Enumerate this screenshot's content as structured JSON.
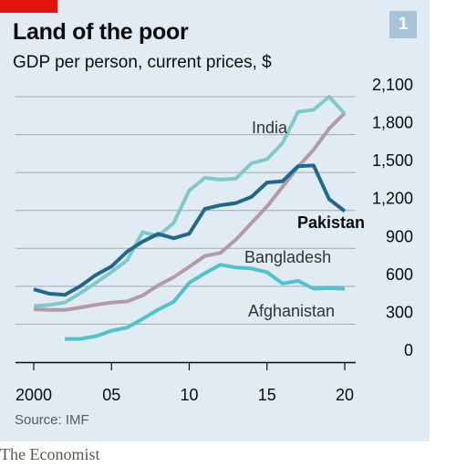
{
  "header": {
    "title": "Land of the poor",
    "subtitle": "GDP per person, current prices, $",
    "chart_number": "1"
  },
  "footer": {
    "source": "Source: IMF",
    "brand": "The Economist"
  },
  "colors": {
    "panel": "#e0ebf3",
    "red_tag": "#e3120b",
    "India": "#7fcac8",
    "Pakistan": "#1f6991",
    "Bangladesh": "#b39aa7",
    "Afghanistan": "#4fc2cf"
  },
  "chart_data": {
    "type": "line",
    "title": "Land of the poor",
    "subtitle": "GDP per person, current prices, $",
    "xlabel": "",
    "ylabel": "",
    "xlim": [
      2000,
      2020
    ],
    "ylim": [
      0,
      2100
    ],
    "yticks": [
      0,
      300,
      600,
      900,
      1200,
      1500,
      1800,
      2100
    ],
    "ytick_labels": [
      "0",
      "300",
      "600",
      "900",
      "1,200",
      "1,500",
      "1,800",
      "2,100"
    ],
    "xticks": [
      2000,
      2005,
      2010,
      2015,
      2020
    ],
    "xtick_labels": [
      "2000",
      "05",
      "10",
      "15",
      "20"
    ],
    "grid": "horizontal",
    "series": [
      {
        "name": "India",
        "x": [
          2000,
          2001,
          2002,
          2003,
          2004,
          2005,
          2006,
          2007,
          2008,
          2009,
          2010,
          2011,
          2012,
          2013,
          2014,
          2015,
          2016,
          2017,
          2018,
          2019,
          2020
        ],
        "values": [
          443,
          452,
          471,
          546,
          628,
          714,
          806,
          1028,
          998,
          1101,
          1358,
          1458,
          1444,
          1452,
          1573,
          1606,
          1733,
          1981,
          1997,
          2100,
          1965
        ]
      },
      {
        "name": "Pakistan",
        "x": [
          2000,
          2001,
          2002,
          2003,
          2004,
          2005,
          2006,
          2007,
          2008,
          2009,
          2010,
          2011,
          2012,
          2013,
          2014,
          2015,
          2016,
          2017,
          2018,
          2019,
          2020
        ],
        "values": [
          576,
          541,
          532,
          602,
          690,
          757,
          874,
          953,
          1015,
          980,
          1016,
          1212,
          1241,
          1258,
          1307,
          1421,
          1431,
          1550,
          1556,
          1289,
          1194
        ]
      },
      {
        "name": "Bangladesh",
        "x": [
          2000,
          2001,
          2002,
          2003,
          2004,
          2005,
          2006,
          2007,
          2008,
          2009,
          2010,
          2011,
          2012,
          2013,
          2014,
          2015,
          2016,
          2017,
          2018,
          2019,
          2020
        ],
        "values": [
          418,
          413,
          413,
          432,
          453,
          471,
          480,
          527,
          607,
          672,
          754,
          839,
          864,
          969,
          1100,
          1232,
          1386,
          1545,
          1681,
          1848,
          1970
        ]
      },
      {
        "name": "Afghanistan",
        "x": [
          2002,
          2003,
          2004,
          2005,
          2006,
          2007,
          2008,
          2009,
          2010,
          2011,
          2012,
          2013,
          2014,
          2015,
          2016,
          2017,
          2018,
          2019,
          2020
        ],
        "values": [
          183,
          184,
          205,
          248,
          273,
          341,
          415,
          478,
          627,
          703,
          771,
          748,
          741,
          711,
          622,
          642,
          581,
          585,
          580
        ]
      }
    ],
    "labels": [
      {
        "series": "India",
        "text": "India",
        "bold": false
      },
      {
        "series": "Pakistan",
        "text": "Pakistan",
        "bold": true
      },
      {
        "series": "Bangladesh",
        "text": "Bangladesh",
        "bold": false
      },
      {
        "series": "Afghanistan",
        "text": "Afghanistan",
        "bold": false
      }
    ],
    "source": "Source: IMF"
  }
}
